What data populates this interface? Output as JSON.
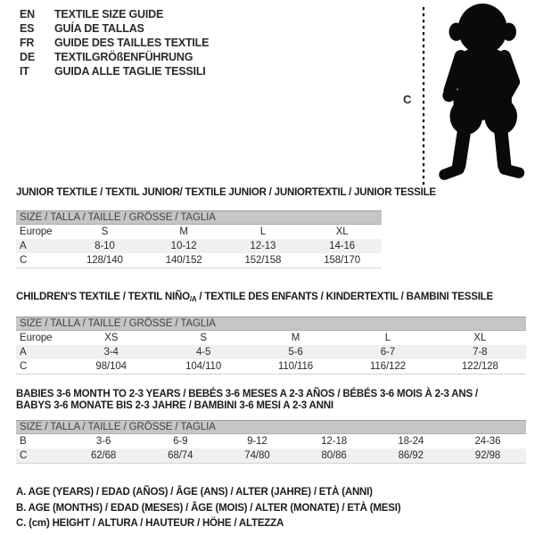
{
  "header": {
    "languages": [
      {
        "code": "EN",
        "title": "TEXTILE SIZE GUIDE"
      },
      {
        "code": "ES",
        "title": "GUÍA DE TALLAS"
      },
      {
        "code": "FR",
        "title": "GUIDE DES TAILLES TEXTILE"
      },
      {
        "code": "DE",
        "title": "TEXTILGRÖßENFÜHRUNG"
      },
      {
        "code": "IT",
        "title": "GUIDA ALLE TAGLIE TESSILI"
      }
    ],
    "figure_label": "C"
  },
  "tables": [
    {
      "title_lines": [
        [
          {
            "t": "JUNIOR TEXTILE / TEXTIL JUNIOR/ TEXTILE JUNIOR / JUNIORTEXTIL / JUNIOR TESSILE"
          }
        ]
      ],
      "size_header": "SIZE / TALLA / TAILLE / GRÖSSE / TAGLIA",
      "region_label": "Europe",
      "columns": [
        "S",
        "M",
        "L",
        "XL"
      ],
      "rows": [
        {
          "label": "A",
          "shaded": true,
          "values": [
            "8-10",
            "10-12",
            "12-13",
            "14-16"
          ]
        },
        {
          "label": "C",
          "shaded": false,
          "values": [
            "128/140",
            "140/152",
            "152/158",
            "158/170"
          ]
        }
      ]
    },
    {
      "title_lines": [
        [
          {
            "t": "CHILDREN'S TEXTILE / TEXTIL NIÑO"
          },
          {
            "t": "/A",
            "sub": true
          },
          {
            "t": " / TEXTILE DES ENFANTS / KINDERTEXTIL / BAMBINI TESSILE"
          }
        ]
      ],
      "size_header": "SIZE / TALLA / TAILLE / GRÖSSE / TAGLIA",
      "region_label": "Europe",
      "columns": [
        "XS",
        "S",
        "M",
        "L",
        "XL"
      ],
      "rows": [
        {
          "label": "A",
          "shaded": true,
          "values": [
            "3-4",
            "4-5",
            "5-6",
            "6-7",
            "7-8"
          ]
        },
        {
          "label": "C",
          "shaded": false,
          "values": [
            "98/104",
            "104/110",
            "110/116",
            "116/122",
            "122/128"
          ]
        }
      ]
    },
    {
      "title_lines": [
        [
          {
            "t": "BABIES 3-6 MONTH TO 2-3 YEARS / BEBÉS 3-6 MESES A 2-3 AÑOS / BÉBÉS 3-6 MOIS À 2-3 ANS /"
          }
        ],
        [
          {
            "t": "BABYS 3-6 MONATE BIS 2-3 JAHRE / BAMBINI 3-6 MESI A 2-3 ANNI"
          }
        ]
      ],
      "size_header": "SIZE / TALLA / TAILLE / GRÖSSE / TAGLIA",
      "region_label": null,
      "columns": null,
      "rows": [
        {
          "label": "B",
          "shaded": false,
          "values": [
            "3-6",
            "6-9",
            "9-12",
            "12-18",
            "18-24",
            "24-36"
          ]
        },
        {
          "label": "C",
          "shaded": true,
          "values": [
            "62/68",
            "68/74",
            "74/80",
            "80/86",
            "86/92",
            "92/98"
          ]
        }
      ]
    }
  ],
  "notes": [
    "A. AGE (YEARS) / EDAD (AÑOS) / ÂGE (ANS) / ALTER (JAHRE) / ETÀ (ANNI)",
    "B. AGE (MONTHS) / EDAD (MESES) / ÂGE (MOIS) / ALTER (MONATE) / ETÀ (MESI)",
    "C. (cm) HEIGHT / ALTURA / HAUTEUR / HÖHE / ALTEZZA"
  ],
  "colors": {
    "bar_bg": "#c6c6c6",
    "shaded_row": "#f0f0f0",
    "silhouette": "#0a0a0a",
    "text": "#2a2a2a"
  }
}
